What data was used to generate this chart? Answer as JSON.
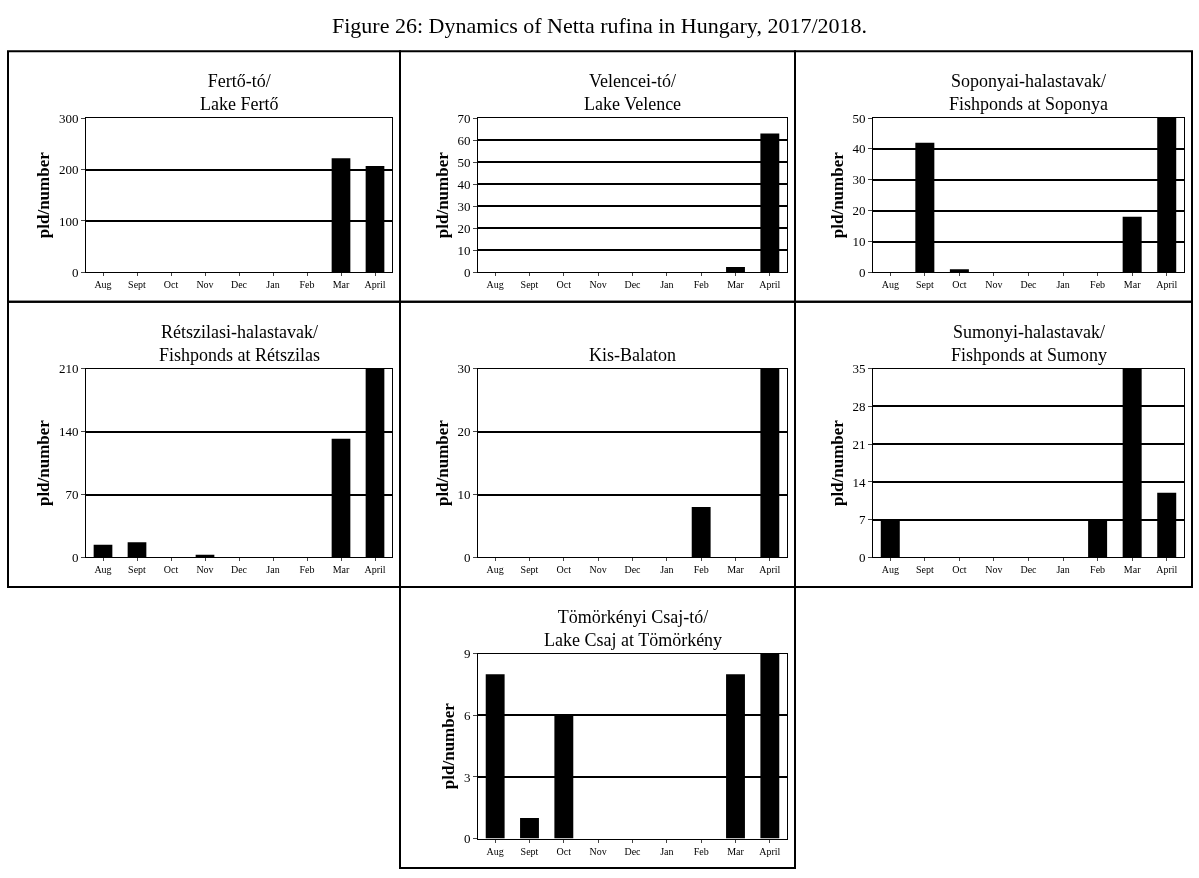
{
  "chart_data": [
    {
      "type": "bar",
      "title": "Fertő-tó/\nLake Fertő",
      "ylabel": "pld/number",
      "annotations": [
        "Figure 26: Dynamics of Netta rufina in Hungary, 2017/2018."
      ],
      "categories": [
        "Aug",
        "Sept",
        "Oct",
        "Nov",
        "Dec",
        "Jan",
        "Feb",
        "Mar",
        "April"
      ],
      "values": [
        0,
        0,
        0,
        0,
        0,
        0,
        0,
        222,
        207
      ],
      "color": "#000000",
      "ylim": [
        0,
        300
      ],
      "yticks": [
        0,
        100,
        200,
        300
      ],
      "grid": "y"
    },
    {
      "type": "bar",
      "title": "Velencei-tó/\nLake Velence",
      "ylabel": "pld/number",
      "categories": [
        "Aug",
        "Sept",
        "Oct",
        "Nov",
        "Dec",
        "Jan",
        "Feb",
        "Mar",
        "April"
      ],
      "values": [
        0,
        0,
        0,
        0,
        0,
        0,
        0,
        2.5,
        63
      ],
      "color": "#000000",
      "ylim": [
        0,
        70
      ],
      "yticks": [
        0,
        10,
        20,
        30,
        40,
        50,
        60,
        70
      ],
      "grid": "y"
    },
    {
      "type": "bar",
      "title": "Soponyai-halastavak/\nFishponds at Soponya",
      "ylabel": "pld/number",
      "categories": [
        "Aug",
        "Sept",
        "Oct",
        "Nov",
        "Dec",
        "Jan",
        "Feb",
        "Mar",
        "April"
      ],
      "values": [
        0,
        42,
        1,
        0,
        0,
        0,
        0,
        18,
        50
      ],
      "color": "#000000",
      "ylim": [
        0,
        50
      ],
      "yticks": [
        0,
        10,
        20,
        30,
        40,
        50
      ],
      "grid": "y"
    },
    {
      "type": "bar",
      "title": "Rétszilasi-halastavak/\nFishponds at Rétszilas",
      "ylabel": "pld/number",
      "categories": [
        "Aug",
        "Sept",
        "Oct",
        "Nov",
        "Dec",
        "Jan",
        "Feb",
        "Mar",
        "April"
      ],
      "values": [
        14,
        17,
        0,
        3,
        0,
        0,
        0,
        132,
        210
      ],
      "color": "#000000",
      "ylim": [
        0,
        210
      ],
      "yticks": [
        0,
        70,
        140,
        210
      ],
      "grid": "y"
    },
    {
      "type": "bar",
      "title": "Kis-Balaton",
      "ylabel": "pld/number",
      "categories": [
        "Aug",
        "Sept",
        "Oct",
        "Nov",
        "Dec",
        "Jan",
        "Feb",
        "Mar",
        "April"
      ],
      "values": [
        0,
        0,
        0,
        0,
        0,
        0,
        8,
        0,
        30
      ],
      "color": "#000000",
      "ylim": [
        0,
        30
      ],
      "yticks": [
        0,
        10,
        20,
        30
      ],
      "grid": "y"
    },
    {
      "type": "bar",
      "title": "Sumonyi-halastavak/\nFishponds at Sumony",
      "ylabel": "pld/number",
      "categories": [
        "Aug",
        "Sept",
        "Oct",
        "Nov",
        "Dec",
        "Jan",
        "Feb",
        "Mar",
        "April"
      ],
      "values": [
        7,
        0,
        0,
        0,
        0,
        0,
        7,
        35,
        12
      ],
      "color": "#000000",
      "ylim": [
        0,
        35
      ],
      "yticks": [
        0,
        7,
        14,
        21,
        28,
        35
      ],
      "grid": "y"
    },
    {
      "type": "bar",
      "title": "Tömörkényi Csaj-tó/\nLake Csaj at Tömörkény",
      "ylabel": "pld/number",
      "categories": [
        "Aug",
        "Sept",
        "Oct",
        "Nov",
        "Dec",
        "Jan",
        "Feb",
        "Mar",
        "April"
      ],
      "values": [
        8,
        1,
        6,
        0,
        0,
        0,
        0,
        8,
        9
      ],
      "color": "#000000",
      "ylim": [
        0,
        9
      ],
      "yticks": [
        0,
        3,
        6,
        9
      ],
      "grid": "y"
    }
  ]
}
